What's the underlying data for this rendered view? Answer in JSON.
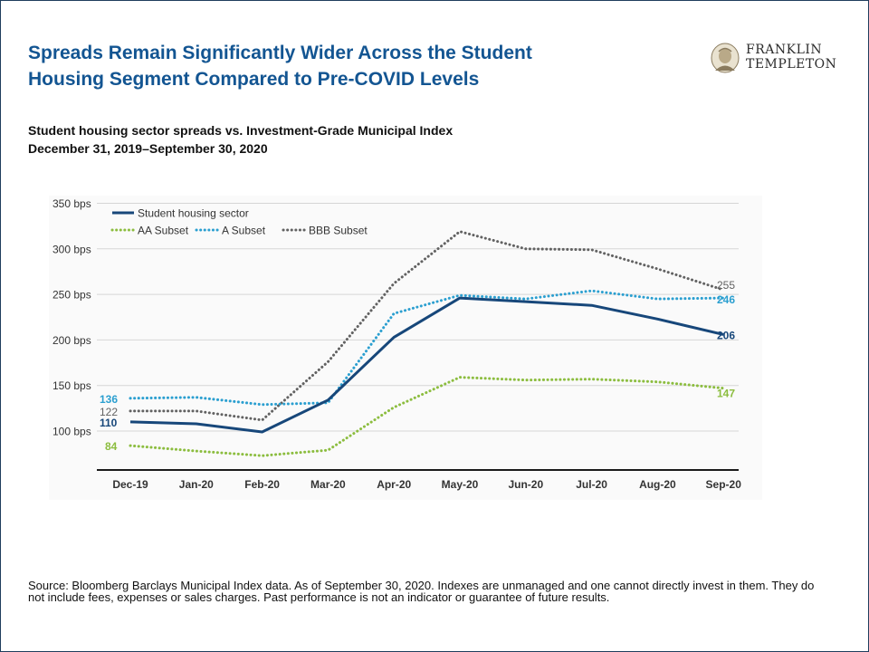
{
  "header": {
    "title_line1": "Spreads Remain Significantly Wider Across the Student",
    "title_line2": "Housing Segment Compared to Pre-COVID Levels",
    "logo_line1": "FRANKLIN",
    "logo_line2": "TEMPLETON"
  },
  "chart_data": {
    "type": "line",
    "title": "Student housing sector spreads vs. Investment-Grade Municipal Index",
    "subtitle": "December 31, 2019–September 30, 2020",
    "categories": [
      "Dec-19",
      "Jan-20",
      "Feb-20",
      "Mar-20",
      "Apr-20",
      "May-20",
      "Jun-20",
      "Jul-20",
      "Aug-20",
      "Sep-20"
    ],
    "y_ticks": [
      "350 bps",
      "300 bps",
      "250 bps",
      "200 bps",
      "150 bps",
      "100 bps"
    ],
    "ylim": [
      50,
      350
    ],
    "grid": true,
    "legend_position": "top-left",
    "series": [
      {
        "name": "Student housing sector",
        "color": "#17477a",
        "style": "solid",
        "values": [
          110,
          108,
          99,
          134,
          203,
          246,
          242,
          238,
          223,
          206
        ],
        "start_label": "110",
        "end_label": "206"
      },
      {
        "name": "AA Subset",
        "color": "#8cbd3f",
        "style": "dotted",
        "values": [
          84,
          78,
          73,
          79,
          126,
          159,
          156,
          157,
          154,
          147
        ],
        "start_label": "84",
        "end_label": "147"
      },
      {
        "name": "A Subset",
        "color": "#2b9fd0",
        "style": "dotted",
        "values": [
          136,
          137,
          129,
          131,
          229,
          249,
          245,
          254,
          245,
          246
        ],
        "start_label": "136",
        "end_label": "246"
      },
      {
        "name": "BBB Subset",
        "color": "#626262",
        "style": "dotted",
        "values": [
          122,
          122,
          112,
          176,
          262,
          319,
          300,
          299,
          278,
          255
        ],
        "start_label": "122",
        "end_label": "255"
      }
    ]
  },
  "footer": {
    "source": "Source: Bloomberg Barclays Municipal Index data. As of September 30, 2020. Indexes are unmanaged and one cannot directly invest in them. They do not include fees, expenses or sales charges. Past performance is not an indicator or guarantee of future results."
  }
}
